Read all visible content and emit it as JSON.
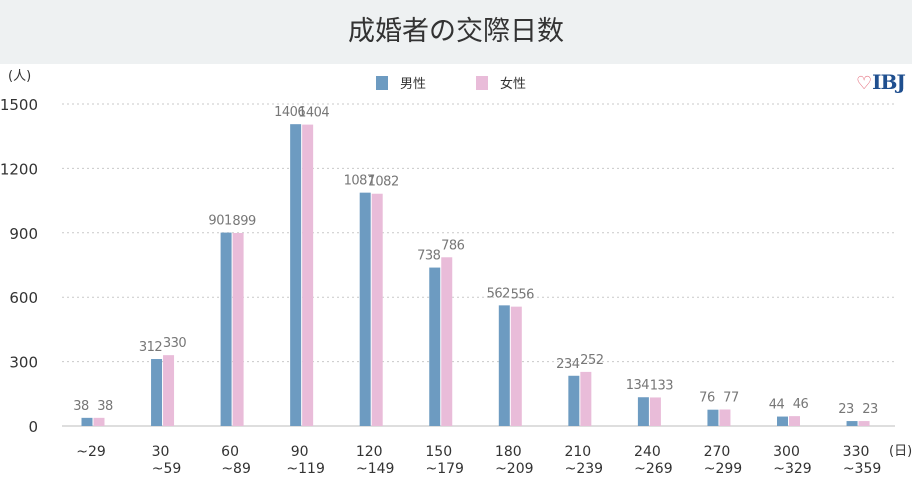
{
  "chart_data": {
    "type": "bar",
    "title": "成婚者の交際日数",
    "ylabel": "(人)",
    "xlabel": "(日)",
    "ylim": [
      0,
      1500
    ],
    "yticks": [
      "0",
      "300",
      "600",
      "900",
      "1200",
      "1500"
    ],
    "ytick_values": [
      0,
      300,
      600,
      900,
      1200,
      1500
    ],
    "grid": "horizontal-dotted",
    "legend": "top-center",
    "categories": [
      [
        "~29"
      ],
      [
        "30",
        "~59"
      ],
      [
        "60",
        "~89"
      ],
      [
        "90",
        "~119"
      ],
      [
        "120",
        "~149"
      ],
      [
        "150",
        "~179"
      ],
      [
        "180",
        "~209"
      ],
      [
        "210",
        "~239"
      ],
      [
        "240",
        "~269"
      ],
      [
        "270",
        "~299"
      ],
      [
        "300",
        "~329"
      ],
      [
        "330",
        "~359"
      ]
    ],
    "series": [
      {
        "name": "男性",
        "color": "#6d9bc1",
        "values": [
          38,
          312,
          901,
          1406,
          1087,
          738,
          562,
          234,
          134,
          76,
          44,
          23
        ]
      },
      {
        "name": "女性",
        "color": "#e9bcd9",
        "values": [
          38,
          330,
          899,
          1404,
          1082,
          786,
          556,
          252,
          133,
          77,
          46,
          23
        ]
      }
    ]
  },
  "logo": {
    "text": "IBJ",
    "icon": "heart-icon"
  }
}
